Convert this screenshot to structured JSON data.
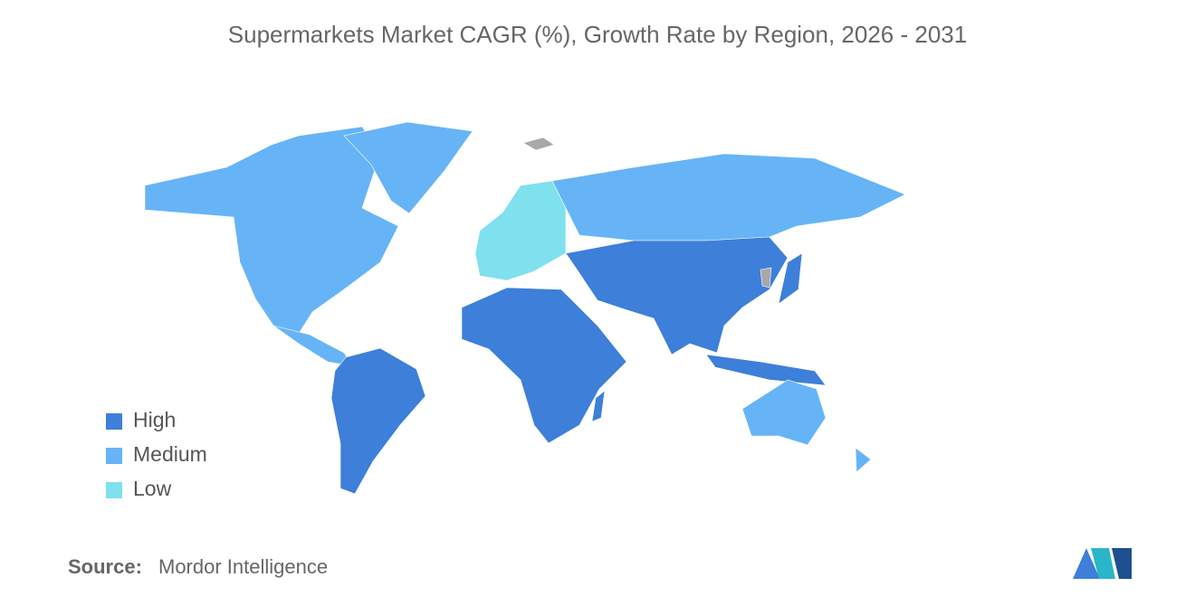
{
  "title": "Supermarkets Market CAGR (%), Growth Rate by Region, 2026 - 2031",
  "legend": [
    {
      "label": "High",
      "color": "#3d7fd9"
    },
    {
      "label": "Medium",
      "color": "#66b4f6"
    },
    {
      "label": "Low",
      "color": "#7fe0ee"
    }
  ],
  "no_data_color": "#a8a8a8",
  "source": {
    "label": "Source:",
    "value": "Mordor Intelligence"
  }
}
